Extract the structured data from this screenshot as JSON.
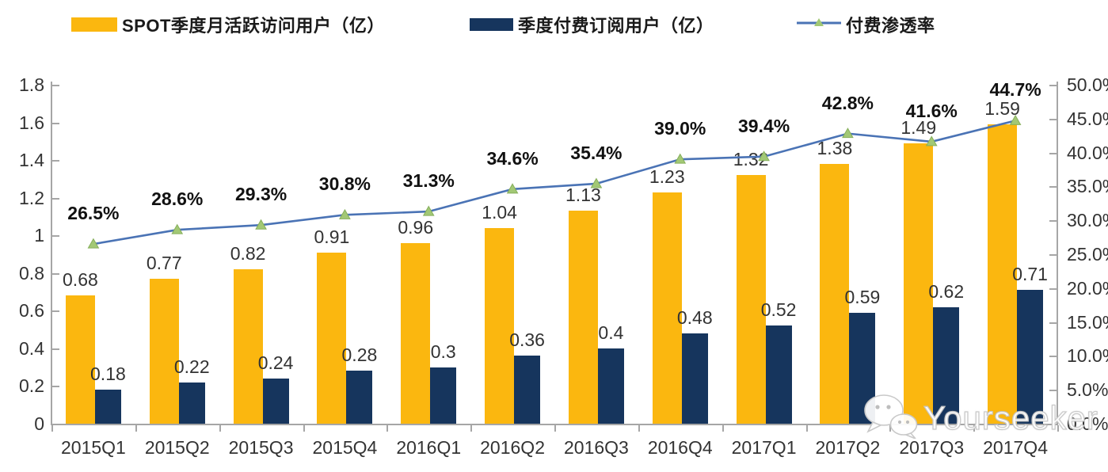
{
  "legend": {
    "items": [
      {
        "label": "SPOT季度月活跃访问用户（亿）"
      },
      {
        "label": "季度付费订阅用户（亿）"
      },
      {
        "label": "付费渗透率"
      }
    ]
  },
  "colors": {
    "mau_bar": "#FBB70F",
    "subs_bar": "#16355D",
    "line": "#4A73B5",
    "marker_fill": "#A2C875",
    "marker_edge": "#86AF5B",
    "axis": "#a6a6a6",
    "value_text": "#333333",
    "pct_text": "#111111"
  },
  "chart_data": {
    "type": "bar",
    "title": "",
    "categories": [
      "2015Q1",
      "2015Q2",
      "2015Q3",
      "2015Q4",
      "2016Q1",
      "2016Q2",
      "2016Q3",
      "2016Q4",
      "2017Q1",
      "2017Q2",
      "2017Q3",
      "2017Q4"
    ],
    "series": [
      {
        "name": "SPOT季度月活跃访问用户（亿）",
        "type": "bar",
        "axis": "left",
        "values": [
          0.68,
          0.77,
          0.82,
          0.91,
          0.96,
          1.04,
          1.13,
          1.23,
          1.32,
          1.38,
          1.49,
          1.59
        ],
        "labels": [
          "0.68",
          "0.77",
          "0.82",
          "0.91",
          "0.96",
          "1.04",
          "1.13",
          "1.23",
          "1.32",
          "1.38",
          "1.49",
          "1.59"
        ]
      },
      {
        "name": "季度付费订阅用户（亿）",
        "type": "bar",
        "axis": "left",
        "values": [
          0.18,
          0.22,
          0.24,
          0.28,
          0.3,
          0.36,
          0.4,
          0.48,
          0.52,
          0.59,
          0.62,
          0.71
        ],
        "labels": [
          "0.18",
          "0.22",
          "0.24",
          "0.28",
          "0.3",
          "0.36",
          "0.4",
          "0.48",
          "0.52",
          "0.59",
          "0.62",
          "0.71"
        ]
      },
      {
        "name": "付费渗透率",
        "type": "line",
        "axis": "right",
        "values": [
          26.5,
          28.6,
          29.3,
          30.8,
          31.3,
          34.6,
          35.4,
          39.0,
          39.4,
          42.8,
          41.6,
          44.7
        ],
        "labels": [
          "26.5%",
          "28.6%",
          "29.3%",
          "30.8%",
          "31.3%",
          "34.6%",
          "35.4%",
          "39.0%",
          "39.4%",
          "42.8%",
          "41.6%",
          "44.7%"
        ]
      }
    ],
    "left_axis": {
      "min": 0,
      "max": 1.8,
      "tick_labels": [
        "0",
        "0.2",
        "0.4",
        "0.6",
        "0.8",
        "1",
        "1.2",
        "1.4",
        "1.6",
        "1.8"
      ]
    },
    "right_axis": {
      "min": 0,
      "max": 50,
      "tick_labels": [
        "0.0%",
        "5.0%",
        "10.0%",
        "15.0%",
        "20.0%",
        "25.0%",
        "30.0%",
        "35.0%",
        "40.0%",
        "45.0%",
        "50.0%"
      ]
    },
    "grid": false,
    "legend_position": "top"
  },
  "watermark": {
    "text": "Yourseeker"
  }
}
